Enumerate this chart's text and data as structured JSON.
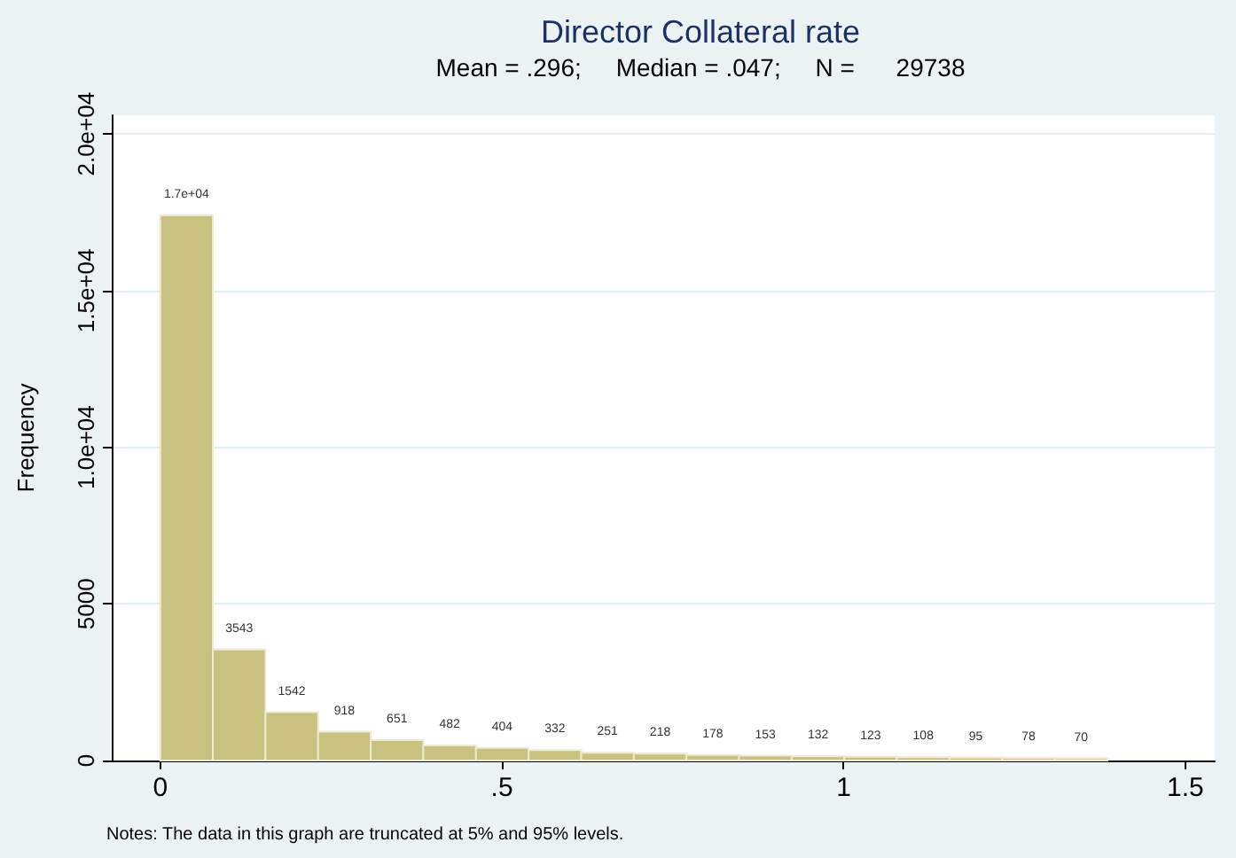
{
  "chart_data": {
    "type": "histogram",
    "title": "Director Collateral rate",
    "subtitle": "Mean = .296;     Median = .047;     N =      29738",
    "ylabel": "Frequency",
    "bins": [
      0,
      0.077,
      0.154,
      0.231,
      0.308,
      0.385,
      0.462,
      0.539,
      0.616,
      0.693,
      0.77,
      0.847,
      0.924,
      1.001,
      1.078,
      1.155,
      1.232,
      1.309,
      1.386
    ],
    "values": [
      17400,
      3543,
      1542,
      918,
      651,
      482,
      404,
      332,
      251,
      218,
      178,
      153,
      132,
      123,
      108,
      95,
      78,
      70
    ],
    "value_labels": [
      "1.7e+04",
      "3543",
      "1542",
      "918",
      "651",
      "482",
      "404",
      "332",
      "251",
      "218",
      "178",
      "153",
      "132",
      "123",
      "108",
      "95",
      "78",
      "70"
    ],
    "color": "#c9c180",
    "xlim": [
      -0.071,
      1.543
    ],
    "xticks": [
      0,
      {
        "value": 0.5,
        "label": ".5"
      },
      1,
      1.5
    ],
    "ylim": [
      0,
      20600
    ],
    "yticks": [
      0,
      5000,
      {
        "value": 10000,
        "label": "1.0e+04"
      },
      {
        "value": 15000,
        "label": "1.5e+04"
      },
      {
        "value": 20000,
        "label": "2.0e+04"
      }
    ],
    "grid": "y",
    "annotations": [
      "Notes: The data in this graph are truncated at 5% and 95% levels."
    ]
  }
}
